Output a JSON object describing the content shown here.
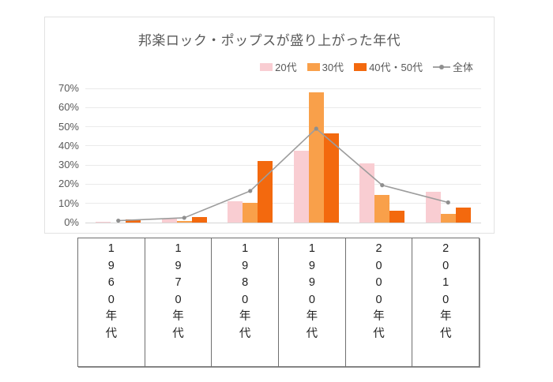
{
  "chart_data": {
    "type": "bar",
    "title": "邦楽ロック・ポップスが盛り上がった年代",
    "categories": [
      "1960年代",
      "1970年代",
      "1980年代",
      "1990年代",
      "2000年代",
      "2010年代"
    ],
    "y_ticks": [
      "0%",
      "10%",
      "20%",
      "30%",
      "40%",
      "50%",
      "60%",
      "70%"
    ],
    "ylim": [
      0,
      70
    ],
    "grid": true,
    "legend_position": "top-right",
    "series": [
      {
        "name": "20代",
        "type": "bar",
        "color": "#f9cdd2",
        "values": [
          0.5,
          2,
          11,
          37.5,
          31,
          16
        ]
      },
      {
        "name": "30代",
        "type": "bar",
        "color": "#f9a04a",
        "values": [
          0,
          1,
          10.5,
          68,
          14.5,
          4.5
        ]
      },
      {
        "name": "40代・50代",
        "type": "bar",
        "color": "#f3690e",
        "values": [
          1.5,
          3,
          32,
          46.5,
          6,
          8
        ]
      },
      {
        "name": "全体",
        "type": "line",
        "color": "#9d9d9d",
        "marker_color": "#8f8f8f",
        "values": [
          1,
          2.5,
          16.5,
          49,
          19.5,
          10.5
        ]
      }
    ]
  }
}
